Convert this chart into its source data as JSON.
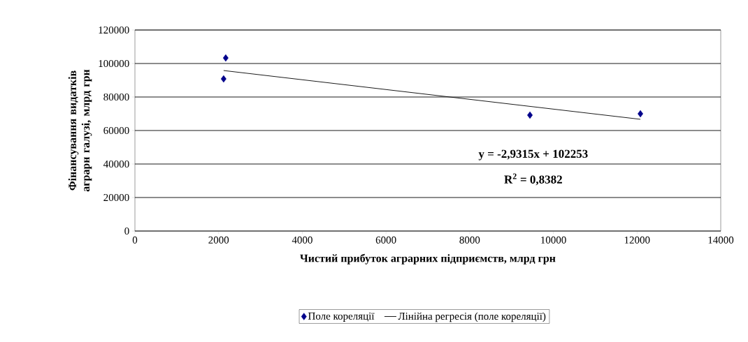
{
  "chart_data": {
    "type": "scatter",
    "xlabel": "Чистий прибуток аграрних підприємств, млрд грн",
    "ylabel": "Фінансування видатків аграрн галузі, млрд грн",
    "series": [
      {
        "name": "Поле кореляції",
        "color": "#00008b",
        "marker": "diamond",
        "x": [
          2120,
          2170,
          9440,
          12080
        ],
        "values": [
          90800,
          103300,
          69200,
          70000
        ]
      },
      {
        "name": "Лінійна регресія (поле кореляції)",
        "type": "line",
        "color": "#000000",
        "marker": "none",
        "line_style": "solid",
        "x": [
          2120,
          12080
        ],
        "values": [
          95800,
          66700
        ]
      }
    ],
    "annotations": [
      "y = -2,9315x + 102253",
      "R$^{2}$ = 0,8382"
    ],
    "xlim": [
      0,
      14000
    ],
    "ylim": [
      0,
      120000
    ],
    "xticks": [
      0,
      2000,
      4000,
      6000,
      8000,
      10000,
      12000,
      14000
    ],
    "yticks": [
      0,
      20000,
      40000,
      60000,
      80000,
      100000,
      120000
    ],
    "grid": "y",
    "legend": "bottom"
  }
}
